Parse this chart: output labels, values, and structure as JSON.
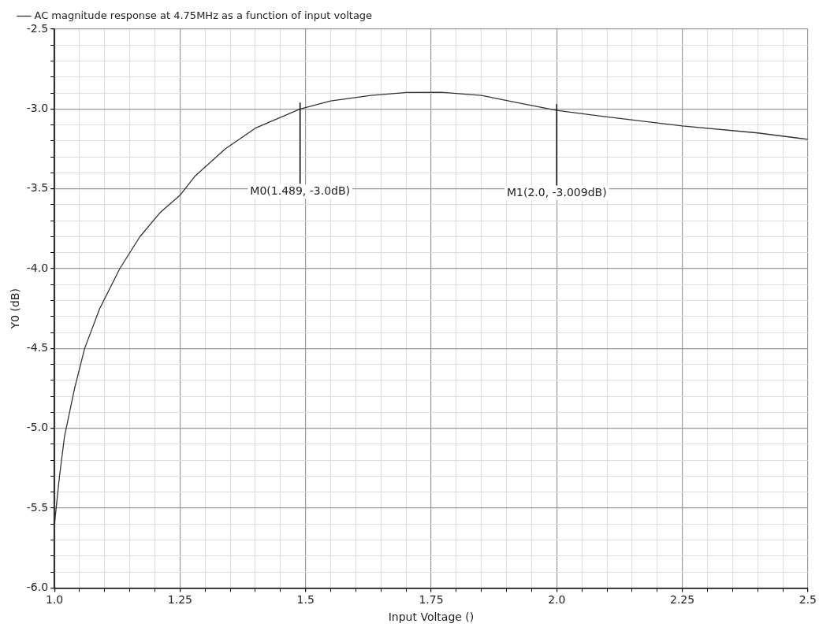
{
  "chart_data": {
    "type": "line",
    "xlabel": "Input Voltage ()",
    "ylabel": "Y0 (dB)",
    "series": [
      {
        "name": "AC magnitude response at 4.75MHz as a function of input voltage",
        "color": "#333333",
        "x": [
          1.0,
          1.01,
          1.02,
          1.04,
          1.06,
          1.09,
          1.13,
          1.17,
          1.21,
          1.25,
          1.28,
          1.34,
          1.4,
          1.489,
          1.55,
          1.63,
          1.7,
          1.77,
          1.85,
          1.92,
          2.0,
          2.1,
          2.25,
          2.4,
          2.5
        ],
        "values": [
          -5.6,
          -5.3,
          -5.05,
          -4.75,
          -4.5,
          -4.25,
          -4.0,
          -3.8,
          -3.65,
          -3.54,
          -3.42,
          -3.25,
          -3.12,
          -3.0,
          -2.95,
          -2.915,
          -2.897,
          -2.895,
          -2.915,
          -2.96,
          -3.009,
          -3.05,
          -3.106,
          -3.15,
          -3.19
        ]
      }
    ],
    "xlim": [
      1.0,
      2.5
    ],
    "xticks": [
      {
        "value": 1,
        "label": "1.0"
      },
      {
        "value": 1.05,
        "label": null
      },
      {
        "value": 1.1,
        "label": null
      },
      {
        "value": 1.15,
        "label": null
      },
      {
        "value": 1.2,
        "label": null
      },
      1.25,
      {
        "value": 1.3,
        "label": null
      },
      {
        "value": 1.35,
        "label": null
      },
      {
        "value": 1.4,
        "label": null
      },
      {
        "value": 1.45,
        "label": null
      },
      1.5,
      {
        "value": 1.55,
        "label": null
      },
      {
        "value": 1.6,
        "label": null
      },
      {
        "value": 1.65,
        "label": null
      },
      {
        "value": 1.7,
        "label": null
      },
      1.75,
      {
        "value": 1.8,
        "label": null
      },
      {
        "value": 1.85,
        "label": null
      },
      {
        "value": 1.9,
        "label": null
      },
      {
        "value": 1.95,
        "label": null
      },
      {
        "value": 2,
        "label": "2.0"
      },
      {
        "value": 2.05,
        "label": null
      },
      {
        "value": 2.1,
        "label": null
      },
      {
        "value": 2.15,
        "label": null
      },
      {
        "value": 2.2,
        "label": null
      },
      2.25,
      {
        "value": 2.3,
        "label": null
      },
      {
        "value": 2.35,
        "label": null
      },
      {
        "value": 2.4,
        "label": null
      },
      {
        "value": 2.45,
        "label": null
      },
      2.5
    ],
    "ylim": [
      -6.0,
      -2.5
    ],
    "yticks": [
      {
        "value": -6,
        "label": "-6.0"
      },
      {
        "value": -5.9,
        "label": null
      },
      {
        "value": -5.8,
        "label": null
      },
      {
        "value": -5.7,
        "label": null
      },
      {
        "value": -5.6,
        "label": null
      },
      -5.5,
      {
        "value": -5.4,
        "label": null
      },
      {
        "value": -5.3,
        "label": null
      },
      {
        "value": -5.2,
        "label": null
      },
      {
        "value": -5.1,
        "label": null
      },
      {
        "value": -5,
        "label": "-5.0"
      },
      {
        "value": -4.9,
        "label": null
      },
      {
        "value": -4.8,
        "label": null
      },
      {
        "value": -4.7,
        "label": null
      },
      {
        "value": -4.6,
        "label": null
      },
      -4.5,
      {
        "value": -4.4,
        "label": null
      },
      {
        "value": -4.3,
        "label": null
      },
      {
        "value": -4.2,
        "label": null
      },
      {
        "value": -4.1,
        "label": null
      },
      {
        "value": -4,
        "label": "-4.0"
      },
      {
        "value": -3.9,
        "label": null
      },
      {
        "value": -3.8,
        "label": null
      },
      {
        "value": -3.7,
        "label": null
      },
      {
        "value": -3.6,
        "label": null
      },
      -3.5,
      {
        "value": -3.4,
        "label": null
      },
      {
        "value": -3.3,
        "label": null
      },
      {
        "value": -3.2,
        "label": null
      },
      {
        "value": -3.1,
        "label": null
      },
      {
        "value": -3,
        "label": "-3.0"
      },
      {
        "value": -2.9,
        "label": null
      },
      {
        "value": -2.8,
        "label": null
      },
      {
        "value": -2.7,
        "label": null
      },
      {
        "value": -2.6,
        "label": null
      },
      -2.5
    ],
    "annotations": [
      {
        "text": "M0(1.489, -3.0dB)",
        "x": 1.489,
        "y": -3.0
      },
      {
        "text": "M1(2.0, -3.009dB)",
        "x": 2.0,
        "y": -3.009
      }
    ],
    "grid": true,
    "legend": "top left",
    "marker": "none",
    "line_style": "solid"
  }
}
